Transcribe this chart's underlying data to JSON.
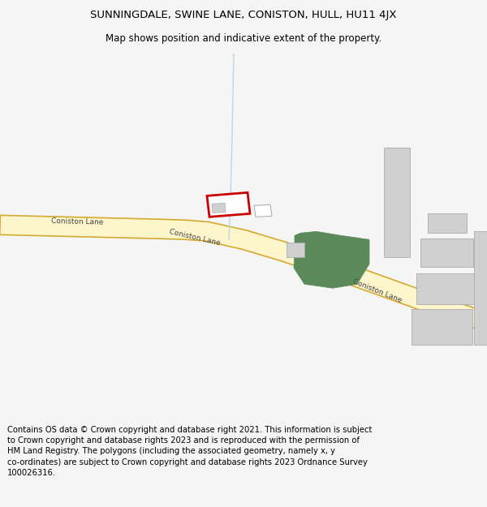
{
  "title": "SUNNINGDALE, SWINE LANE, CONISTON, HULL, HU11 4JX",
  "subtitle": "Map shows position and indicative extent of the property.",
  "footer": "Contains OS data © Crown copyright and database right 2021. This information is subject to Crown copyright and database rights 2023 and is reproduced with the permission of HM Land Registry. The polygons (including the associated geometry, namely x, y co-ordinates) are subject to Crown copyright and database rights 2023 Ordnance Survey 100026316.",
  "bg_color": "#f5f5f5",
  "map_bg": "#ffffff",
  "road_fill": "#fdf5cc",
  "road_edge": "#d4aa30",
  "road_label_color": "#444444",
  "green_area_color": "#5a8a5a",
  "building_color": "#d0d0d0",
  "building_edge": "#aaaaaa",
  "highlight_color": "#cc0000",
  "water_line_color": "#b8d8e8",
  "title_fontsize": 9.5,
  "subtitle_fontsize": 8.5,
  "footer_fontsize": 7.2
}
